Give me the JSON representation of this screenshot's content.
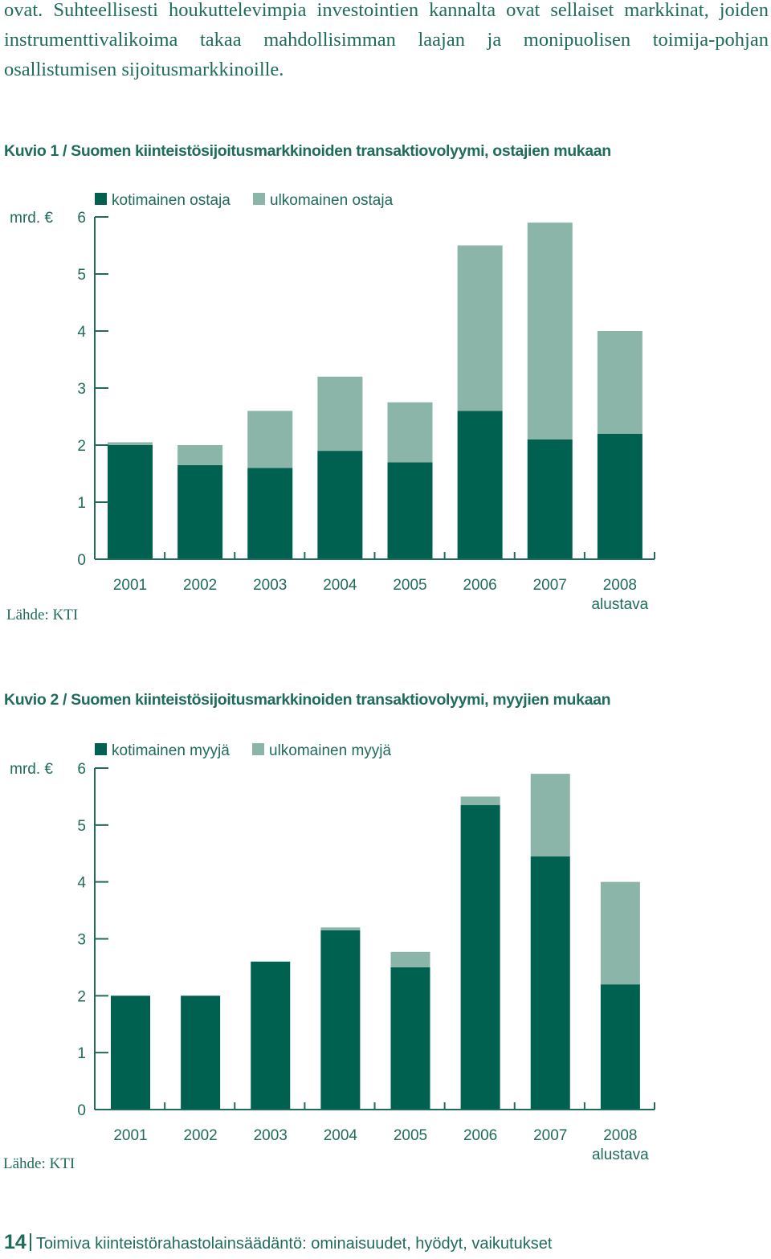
{
  "intro": {
    "text": "ovat. Suhteellisesti houkuttelevimpia investointien kannalta ovat sellaiset markkinat, joiden instrumenttivalikoima takaa mahdollisimman laajan ja monipuolisen toimija-pohjan osallistumisen sijoitusmarkkinoille."
  },
  "colors": {
    "domestic": "#006150",
    "foreign": "#8cb5aa",
    "text": "#1f6b5c"
  },
  "chart_data": [
    {
      "type": "bar",
      "stacked": true,
      "title": "Kuvio 1 / Suomen kiinteistösijoitusmarkkinoiden transaktiovolyymi, ostajien mukaan",
      "unit": "mrd. €",
      "categories": [
        "2001",
        "2002",
        "2003",
        "2004",
        "2005",
        "2006",
        "2007",
        "2008"
      ],
      "category_sublabels": [
        "",
        "",
        "",
        "",
        "",
        "",
        "",
        "alustava"
      ],
      "series": [
        {
          "name": "kotimainen ostaja",
          "color": "#006150",
          "values": [
            2.0,
            1.65,
            1.6,
            1.9,
            1.7,
            2.6,
            2.1,
            2.2
          ]
        },
        {
          "name": "ulkomainen ostaja",
          "color": "#8cb5aa",
          "values": [
            0.05,
            0.35,
            1.0,
            1.3,
            1.05,
            2.9,
            3.8,
            1.8
          ]
        }
      ],
      "ylim": [
        0,
        6
      ],
      "yticks": [
        0,
        1,
        2,
        3,
        4,
        5,
        6
      ],
      "legend_position": "top-left",
      "grid": false,
      "source": "Lähde: KTI"
    },
    {
      "type": "bar",
      "stacked": true,
      "title": "Kuvio 2 / Suomen kiinteistösijoitusmarkkinoiden transaktiovolyymi, myyjien mukaan",
      "unit": "mrd. €",
      "categories": [
        "2001",
        "2002",
        "2003",
        "2004",
        "2005",
        "2006",
        "2007",
        "2008"
      ],
      "category_sublabels": [
        "",
        "",
        "",
        "",
        "",
        "",
        "",
        "alustava"
      ],
      "series": [
        {
          "name": "kotimainen myyjä",
          "color": "#006150",
          "values": [
            2.0,
            2.0,
            2.6,
            3.15,
            2.5,
            5.35,
            4.45,
            2.2
          ]
        },
        {
          "name": "ulkomainen myyjä",
          "color": "#8cb5aa",
          "values": [
            0,
            0,
            0,
            0.05,
            0.27,
            0.15,
            1.45,
            1.8
          ]
        }
      ],
      "ylim": [
        0,
        6
      ],
      "yticks": [
        0,
        1,
        2,
        3,
        4,
        5,
        6
      ],
      "legend_position": "top-left",
      "grid": false,
      "source": "Lähde: KTI"
    }
  ],
  "footer": {
    "page_number": "14",
    "text": "Toimiva kiinteistörahastolainsäädäntö: ominaisuudet, hyödyt, vaikutukset"
  }
}
